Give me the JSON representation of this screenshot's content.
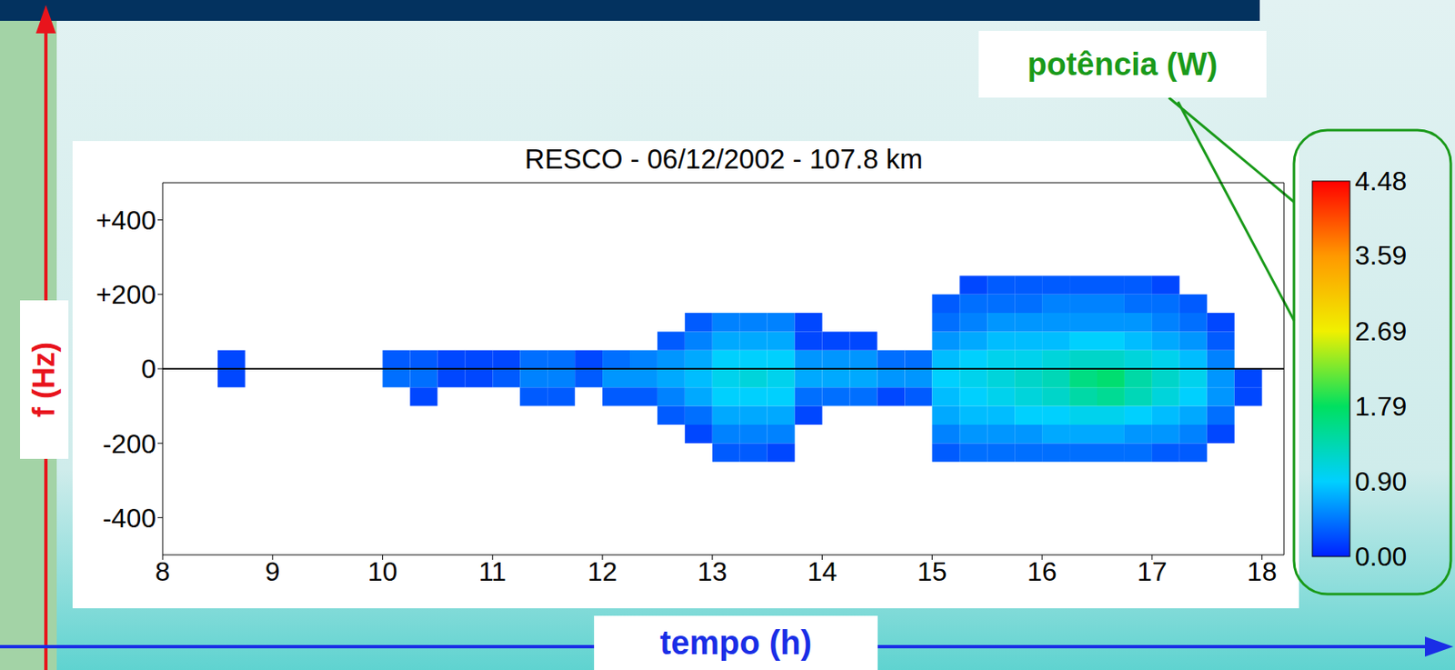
{
  "chart_data": {
    "type": "heatmap",
    "title": "RESCO - 06/12/2002 - 107.8 km",
    "xlabel": "tempo (h)",
    "ylabel": "f (Hz)",
    "xlim": [
      8,
      18.2
    ],
    "ylim": [
      -500,
      500
    ],
    "xticks": [
      8,
      9,
      10,
      11,
      12,
      13,
      14,
      15,
      16,
      17,
      18
    ],
    "yticks": [
      {
        "value": 400,
        "label": "+400"
      },
      {
        "value": 200,
        "label": "+200"
      },
      0,
      -200,
      -400
    ],
    "reference_line": 0,
    "x_bins": [
      8,
      8.25,
      8.5,
      8.75,
      9,
      9.25,
      9.5,
      9.75,
      10,
      10.25,
      10.5,
      10.75,
      11,
      11.25,
      11.5,
      11.75,
      12,
      12.25,
      12.5,
      12.75,
      13,
      13.25,
      13.5,
      13.75,
      14,
      14.25,
      14.5,
      14.75,
      15,
      15.25,
      15.5,
      15.75,
      16,
      16.25,
      16.5,
      16.75,
      17,
      17.25,
      17.5,
      17.75,
      18
    ],
    "y_bins": [
      -250,
      -200,
      -150,
      -100,
      -50,
      0,
      50,
      100,
      150,
      200,
      250
    ],
    "cells": [
      [
        null,
        null,
        null,
        null,
        null,
        null,
        null,
        null,
        null,
        null
      ],
      [
        null,
        null,
        null,
        null,
        null,
        null,
        null,
        null,
        null,
        null
      ],
      [
        null,
        null,
        null,
        null,
        0.2,
        0.2,
        null,
        null,
        null,
        null
      ],
      [
        null,
        null,
        null,
        null,
        null,
        null,
        null,
        null,
        null,
        null
      ],
      [
        null,
        null,
        null,
        null,
        null,
        null,
        null,
        null,
        null,
        null
      ],
      [
        null,
        null,
        null,
        null,
        null,
        null,
        null,
        null,
        null,
        null
      ],
      [
        null,
        null,
        null,
        null,
        null,
        null,
        null,
        null,
        null,
        null
      ],
      [
        null,
        null,
        null,
        null,
        null,
        null,
        null,
        null,
        null,
        null
      ],
      [
        null,
        null,
        null,
        null,
        0.4,
        0.3,
        null,
        null,
        null,
        null
      ],
      [
        null,
        null,
        null,
        0.2,
        0.4,
        0.3,
        null,
        null,
        null,
        null
      ],
      [
        null,
        null,
        null,
        null,
        0.2,
        0.2,
        null,
        null,
        null,
        null
      ],
      [
        null,
        null,
        null,
        null,
        0.2,
        0.2,
        null,
        null,
        null,
        null
      ],
      [
        null,
        null,
        null,
        null,
        0.3,
        0.2,
        null,
        null,
        null,
        null
      ],
      [
        null,
        null,
        null,
        0.3,
        0.5,
        0.4,
        null,
        null,
        null,
        null
      ],
      [
        null,
        null,
        null,
        0.3,
        0.5,
        0.4,
        null,
        null,
        null,
        null
      ],
      [
        null,
        null,
        null,
        null,
        0.3,
        0.2,
        null,
        null,
        null,
        null
      ],
      [
        null,
        null,
        null,
        0.3,
        0.6,
        0.4,
        null,
        null,
        null,
        null
      ],
      [
        null,
        null,
        null,
        0.3,
        0.6,
        0.5,
        null,
        null,
        null,
        null
      ],
      [
        null,
        null,
        0.3,
        0.5,
        0.7,
        0.6,
        0.3,
        null,
        null,
        null
      ],
      [
        null,
        0.2,
        0.4,
        0.7,
        0.8,
        0.7,
        0.5,
        0.3,
        null,
        null
      ],
      [
        0.3,
        0.5,
        0.7,
        0.9,
        1.0,
        0.9,
        0.7,
        0.5,
        null,
        null
      ],
      [
        0.3,
        0.5,
        0.7,
        0.9,
        1.1,
        0.9,
        0.7,
        0.5,
        null,
        null
      ],
      [
        0.2,
        0.5,
        0.7,
        0.9,
        1.0,
        0.9,
        0.7,
        0.5,
        null,
        null
      ],
      [
        null,
        null,
        0.2,
        0.4,
        0.7,
        0.6,
        0.2,
        0.2,
        null,
        null
      ],
      [
        null,
        null,
        null,
        0.4,
        0.7,
        0.6,
        0.2,
        null,
        null,
        null
      ],
      [
        null,
        null,
        null,
        0.4,
        0.7,
        0.6,
        0.2,
        null,
        null,
        null
      ],
      [
        null,
        null,
        null,
        0.2,
        0.6,
        0.4,
        null,
        null,
        null,
        null
      ],
      [
        null,
        null,
        null,
        0.3,
        0.6,
        0.4,
        null,
        null,
        null,
        null
      ],
      [
        0.3,
        0.5,
        0.7,
        0.8,
        0.9,
        0.8,
        0.6,
        0.4,
        0.3,
        null
      ],
      [
        0.4,
        0.6,
        0.8,
        0.9,
        1.0,
        0.9,
        0.7,
        0.5,
        0.4,
        0.2
      ],
      [
        0.4,
        0.6,
        0.8,
        1.0,
        1.1,
        1.0,
        0.8,
        0.6,
        0.4,
        0.3
      ],
      [
        0.4,
        0.6,
        0.9,
        1.1,
        1.2,
        1.0,
        0.8,
        0.6,
        0.4,
        0.3
      ],
      [
        0.4,
        0.7,
        0.9,
        1.2,
        1.3,
        1.1,
        0.8,
        0.6,
        0.5,
        0.3
      ],
      [
        0.4,
        0.7,
        1.0,
        1.4,
        1.6,
        1.2,
        0.9,
        0.6,
        0.5,
        0.3
      ],
      [
        0.4,
        0.7,
        1.0,
        1.5,
        1.7,
        1.2,
        0.9,
        0.6,
        0.5,
        0.3
      ],
      [
        0.4,
        0.6,
        0.9,
        1.3,
        1.4,
        1.1,
        0.8,
        0.6,
        0.4,
        0.3
      ],
      [
        0.3,
        0.6,
        0.8,
        1.1,
        1.2,
        1.0,
        0.7,
        0.5,
        0.4,
        0.2
      ],
      [
        0.3,
        0.5,
        0.7,
        0.9,
        1.0,
        0.8,
        0.6,
        0.4,
        0.3,
        null
      ],
      [
        null,
        0.2,
        0.4,
        0.6,
        0.6,
        0.5,
        0.3,
        0.2,
        null,
        null
      ],
      [
        null,
        null,
        null,
        0.2,
        0.2,
        null,
        null,
        null,
        null,
        null
      ]
    ],
    "colorbar": {
      "label": "potência (W)",
      "range": [
        0,
        4.48
      ],
      "ticks": [
        {
          "value": 0,
          "label": "0.00"
        },
        {
          "value": 0.9,
          "label": "0.90"
        },
        1.79,
        2.69,
        3.59,
        4.48
      ]
    }
  }
}
